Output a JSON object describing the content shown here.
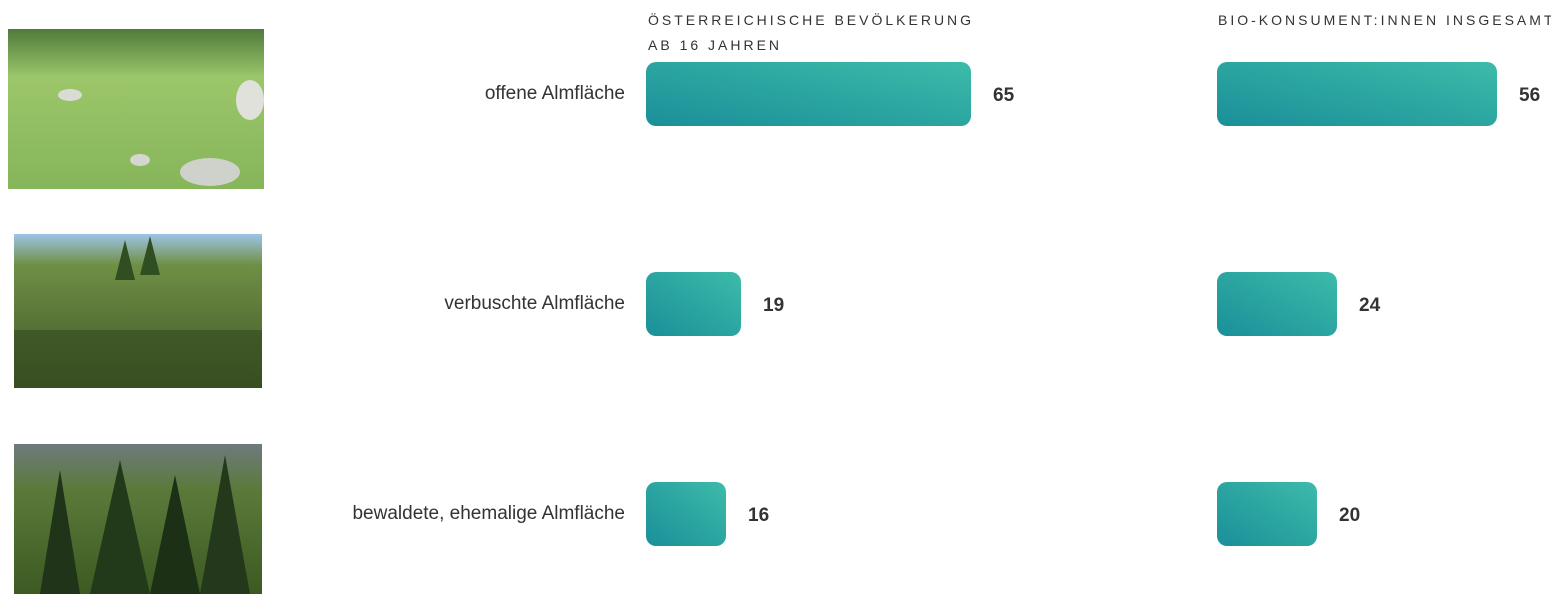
{
  "chart_data": {
    "type": "bar",
    "orientation": "horizontal",
    "categories": [
      "offene Almfläche",
      "verbuschte Almfläche",
      "bewaldete, ehemalige Almfläche"
    ],
    "series": [
      {
        "name": "ÖSTERREICHISCHE BEVÖLKERUNG AB 16 JAHREN",
        "color": "#1e979e",
        "values": [
          65,
          19,
          16
        ]
      },
      {
        "name": "BIO-KONSUMENT:INNEN INSGESAMT",
        "color": "#1e979e",
        "values": [
          56,
          24,
          20
        ]
      }
    ],
    "xlim": [
      0,
      100
    ]
  }
}
